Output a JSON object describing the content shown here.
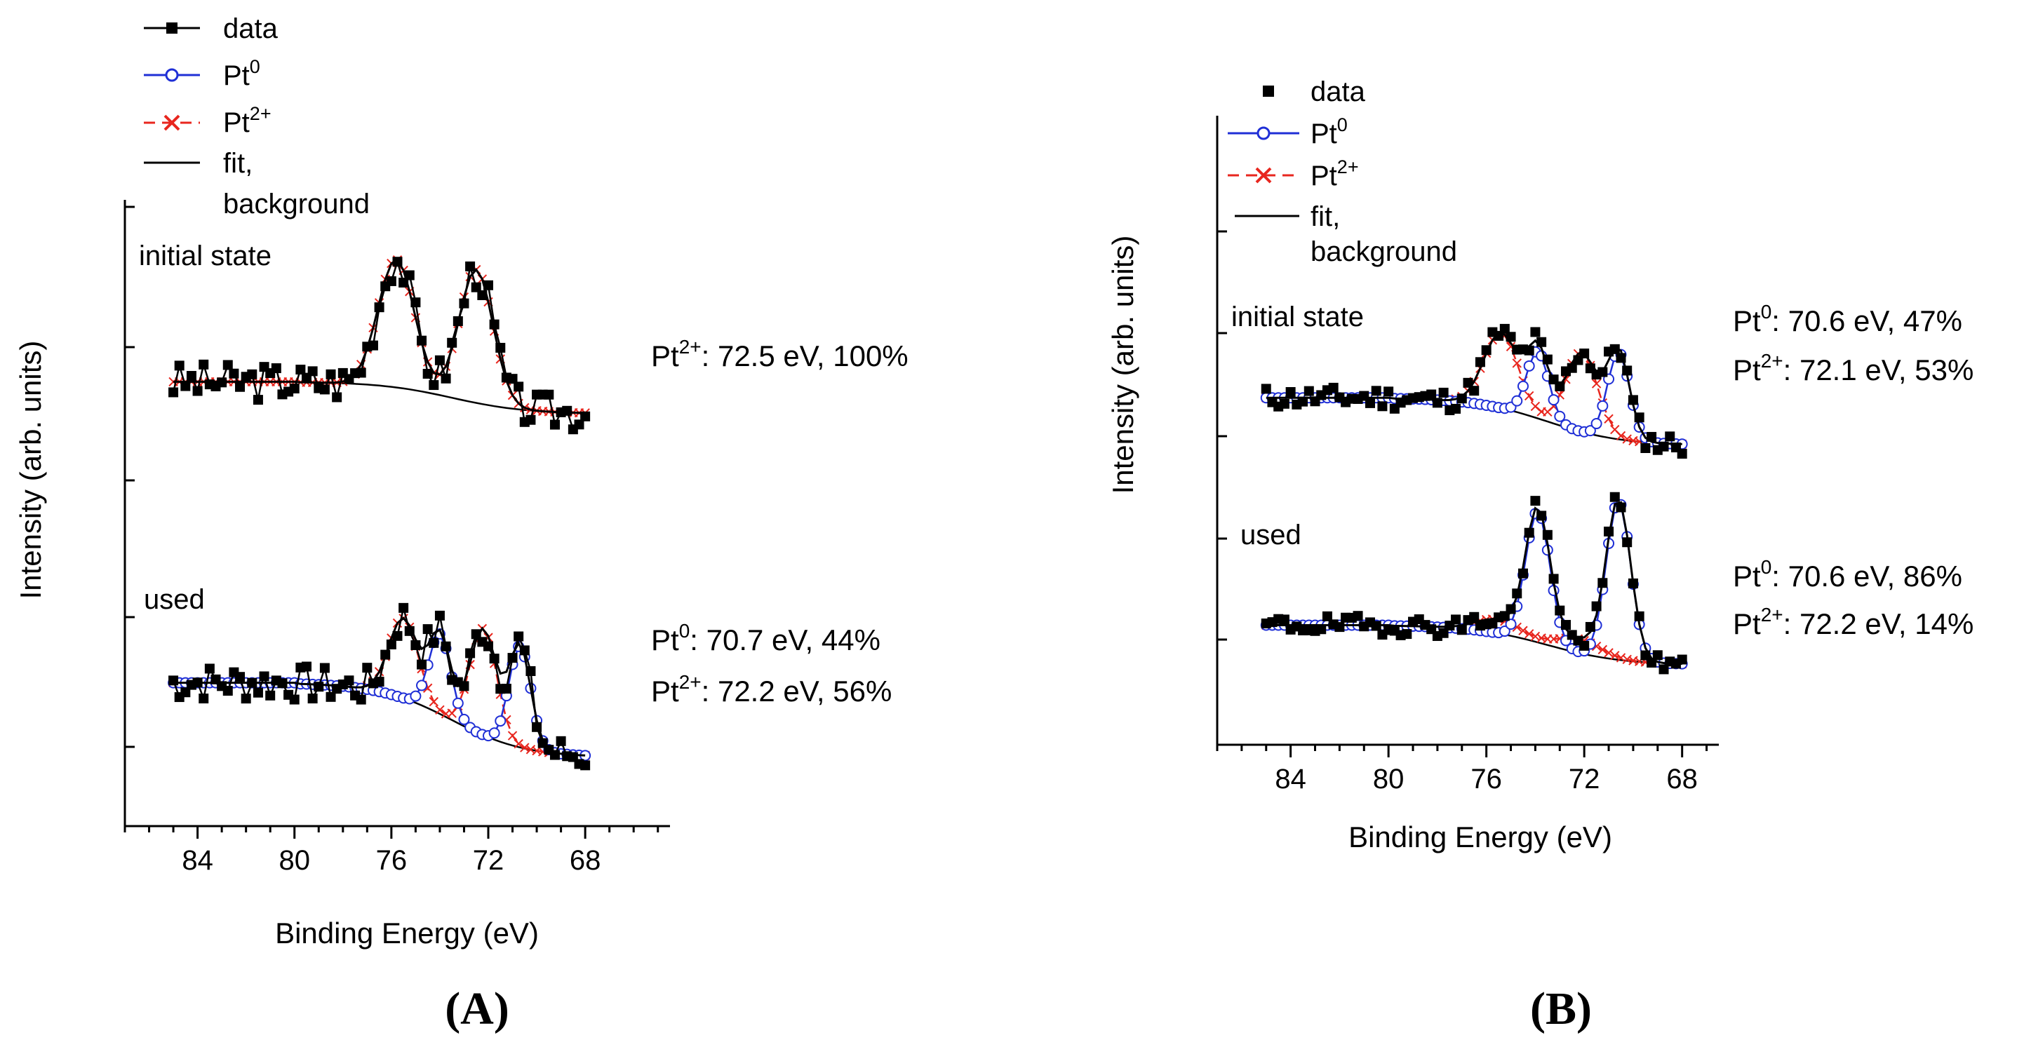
{
  "figure": {
    "panel_labels": [
      "(A)",
      "(B)"
    ]
  },
  "colors": {
    "data": "#000000",
    "pt0": "#1f2fd6",
    "pt2": "#e8261e",
    "fit": "#000000",
    "axis": "#000000"
  },
  "chart_data": [
    {
      "panel": "(A)",
      "type": "line",
      "xlabel": "Binding Energy (eV)",
      "ylabel": "Intensity (arb. units)",
      "xlim": [
        87.0,
        64.5
      ],
      "ylim": [
        0,
        1
      ],
      "x_ticks": [
        "84",
        "80",
        "76",
        "72",
        "68"
      ],
      "legend": {
        "position": "top-left",
        "entries": [
          "data",
          "Pt",
          "Pt",
          "fit,",
          "background"
        ],
        "superscripts": [
          "0",
          "2+"
        ]
      },
      "annotations": {
        "initial": {
          "label": "initial state",
          "lines": [
            {
              "base": "Pt",
              "sup": "2+",
              "text": ": 72.5 eV, 100%"
            }
          ]
        },
        "used": {
          "label": "used",
          "lines": [
            {
              "base": "Pt",
              "sup": "0",
              "text": ":  70.7 eV, 44%"
            },
            {
              "base": "Pt",
              "sup": "2+",
              "text": ": 72.2 eV, 56%"
            }
          ]
        }
      },
      "spectra": [
        {
          "name": "initial state",
          "offset": 0.5,
          "noise": 0.035,
          "seed": 3,
          "data_line": true,
          "x_start": 85.0,
          "x_end": 68.0,
          "bg_x_start": 80.0,
          "bg_y0": 0.06,
          "bg_y1": 0.0,
          "peaks": [
            {
              "center": 72.5,
              "amp": 0.25,
              "width": 0.7,
              "component": "pt2"
            },
            {
              "center": 75.8,
              "amp": 0.24,
              "width": 0.75,
              "component": "pt2"
            }
          ]
        },
        {
          "name": "used",
          "offset": 0.0,
          "noise": 0.035,
          "seed": 7,
          "data_line": true,
          "x_start": 85.0,
          "x_end": 68.0,
          "bg_x_start": 80.0,
          "bg_y0": 0.14,
          "bg_y1": 0.0,
          "peaks": [
            {
              "center": 70.7,
              "amp": 0.19,
              "width": 0.45,
              "component": "pt0"
            },
            {
              "center": 74.0,
              "amp": 0.15,
              "width": 0.45,
              "component": "pt0"
            },
            {
              "center": 72.2,
              "amp": 0.2,
              "width": 0.55,
              "component": "pt2"
            },
            {
              "center": 75.5,
              "amp": 0.15,
              "width": 0.6,
              "component": "pt2"
            }
          ]
        }
      ]
    },
    {
      "panel": "(B)",
      "type": "line",
      "xlabel": "Binding Energy (eV)",
      "ylabel": "Intensity (arb. units)",
      "xlim": [
        87.0,
        66.5
      ],
      "ylim": [
        0,
        1
      ],
      "x_ticks": [
        "84",
        "80",
        "76",
        "72",
        "68"
      ],
      "legend": {
        "position": "top-left",
        "entries": [
          "data",
          "Pt",
          "Pt",
          "fit,",
          "background"
        ],
        "superscripts": [
          "0",
          "2+"
        ]
      },
      "annotations": {
        "initial": {
          "label": "initial state",
          "lines": [
            {
              "base": "Pt",
              "sup": "0",
              "text": ":  70.6 eV, 47%"
            },
            {
              "base": "Pt",
              "sup": "2+",
              "text": ": 72.1 eV, 53%"
            }
          ]
        },
        "used": {
          "label": "used",
          "lines": [
            {
              "base": "Pt",
              "sup": "0",
              "text": ":  70.6 eV, 86%"
            },
            {
              "base": "Pt",
              "sup": "2+",
              "text": ": 72.2 eV, 14%"
            }
          ]
        }
      },
      "spectra": [
        {
          "name": "initial state",
          "offset": 0.52,
          "noise": 0.028,
          "seed": 11,
          "data_line": false,
          "x_start": 85.0,
          "x_end": 68.0,
          "bg_x_start": 80.0,
          "bg_y0": 0.12,
          "bg_y1": 0.0,
          "peaks": [
            {
              "center": 70.6,
              "amp": 0.22,
              "width": 0.45,
              "component": "pt0"
            },
            {
              "center": 73.9,
              "amp": 0.17,
              "width": 0.45,
              "component": "pt0"
            },
            {
              "center": 72.1,
              "amp": 0.2,
              "width": 0.65,
              "component": "pt2"
            },
            {
              "center": 75.4,
              "amp": 0.19,
              "width": 0.7,
              "component": "pt2"
            }
          ]
        },
        {
          "name": "used",
          "offset": 0.0,
          "noise": 0.024,
          "seed": 19,
          "data_line": false,
          "x_start": 85.0,
          "x_end": 68.0,
          "bg_x_start": 80.0,
          "bg_y0": 0.1,
          "bg_y1": 0.0,
          "peaks": [
            {
              "center": 70.6,
              "amp": 0.4,
              "width": 0.5,
              "component": "pt0"
            },
            {
              "center": 73.9,
              "amp": 0.33,
              "width": 0.5,
              "component": "pt0"
            },
            {
              "center": 72.2,
              "amp": 0.035,
              "width": 0.9,
              "component": "pt2"
            },
            {
              "center": 75.5,
              "amp": 0.035,
              "width": 0.9,
              "component": "pt2"
            }
          ]
        }
      ]
    }
  ]
}
